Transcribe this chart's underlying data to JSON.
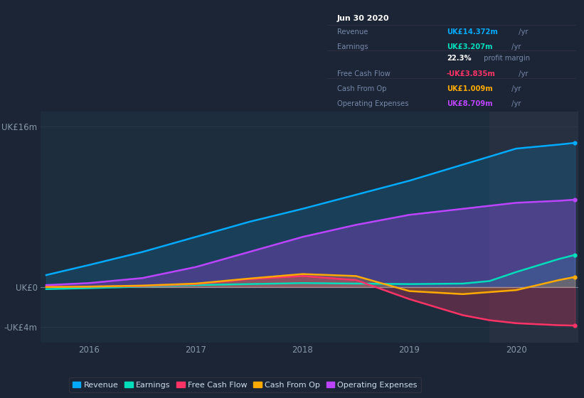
{
  "background_color": "#1c2535",
  "plot_bg_color": "#1e2d3d",
  "grid_color": "#2a3a4a",
  "title_box": {
    "date": "Jun 30 2020",
    "rows": [
      {
        "label": "Revenue",
        "value": "UK£14.372m",
        "unit": " /yr",
        "value_color": "#00aaff",
        "label_color": "#7788aa"
      },
      {
        "label": "Earnings",
        "value": "UK£3.207m",
        "unit": " /yr",
        "value_color": "#00ddbb",
        "label_color": "#7788aa"
      },
      {
        "label": "",
        "value": "22.3%",
        "unit": " profit margin",
        "value_color": "#ffffff",
        "label_color": "#7788aa"
      },
      {
        "label": "Free Cash Flow",
        "value": "-UK£3.835m",
        "unit": " /yr",
        "value_color": "#ff3366",
        "label_color": "#7788aa"
      },
      {
        "label": "Cash From Op",
        "value": "UK£1.009m",
        "unit": " /yr",
        "value_color": "#ffaa00",
        "label_color": "#7788aa"
      },
      {
        "label": "Operating Expenses",
        "value": "UK£8.709m",
        "unit": " /yr",
        "value_color": "#bb44ff",
        "label_color": "#7788aa"
      }
    ]
  },
  "x": [
    2015.6,
    2016.0,
    2016.5,
    2017.0,
    2017.5,
    2018.0,
    2018.5,
    2019.0,
    2019.5,
    2019.75,
    2020.0,
    2020.4,
    2020.55
  ],
  "revenue": [
    1.2,
    2.2,
    3.5,
    5.0,
    6.5,
    7.8,
    9.2,
    10.6,
    12.2,
    13.0,
    13.8,
    14.2,
    14.372
  ],
  "earnings": [
    -0.2,
    -0.1,
    0.05,
    0.2,
    0.3,
    0.4,
    0.35,
    0.3,
    0.35,
    0.6,
    1.5,
    2.8,
    3.207
  ],
  "fcf": [
    0.05,
    0.05,
    0.1,
    0.3,
    0.8,
    1.1,
    0.7,
    -1.2,
    -2.8,
    -3.3,
    -3.6,
    -3.8,
    -3.835
  ],
  "cash_from_op": [
    0.0,
    0.05,
    0.15,
    0.35,
    0.85,
    1.3,
    1.1,
    -0.4,
    -0.7,
    -0.5,
    -0.3,
    0.7,
    1.009
  ],
  "op_expenses": [
    0.2,
    0.4,
    0.9,
    2.0,
    3.5,
    5.0,
    6.2,
    7.2,
    7.8,
    8.1,
    8.4,
    8.6,
    8.709
  ],
  "revenue_color": "#00aaff",
  "earnings_color": "#00ddbb",
  "fcf_color": "#ff3366",
  "cash_from_op_color": "#ffaa00",
  "op_expenses_color": "#bb44ff",
  "ylim": [
    -5.5,
    17.5
  ],
  "yticks_shown": [
    -4,
    0,
    16
  ],
  "ytick_labels": [
    "-UK£4m",
    "UK£0",
    "UK£16m"
  ],
  "ytick_positions": [
    -4,
    0,
    16
  ],
  "xtick_labels": [
    "2016",
    "2017",
    "2018",
    "2019",
    "2020"
  ],
  "xtick_positions": [
    2016,
    2017,
    2018,
    2019,
    2020
  ],
  "shade_x_start": 2019.75,
  "legend": [
    {
      "label": "Revenue",
      "color": "#00aaff"
    },
    {
      "label": "Earnings",
      "color": "#00ddbb"
    },
    {
      "label": "Free Cash Flow",
      "color": "#ff3366"
    },
    {
      "label": "Cash From Op",
      "color": "#ffaa00"
    },
    {
      "label": "Operating Expenses",
      "color": "#bb44ff"
    }
  ]
}
